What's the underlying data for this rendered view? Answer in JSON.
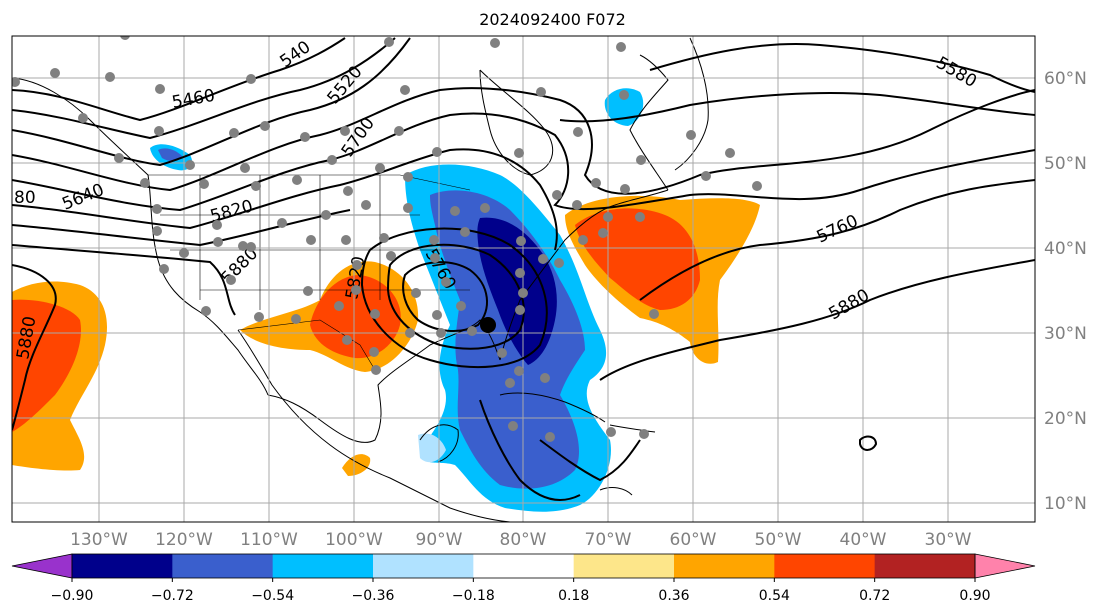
{
  "title": "2024092400 F072",
  "map": {
    "lon_labels": [
      "130°W",
      "120°W",
      "110°W",
      "100°W",
      "90°W",
      "80°W",
      "70°W",
      "60°W",
      "50°W",
      "40°W",
      "30°W"
    ],
    "lat_labels": [
      "60°N",
      "50°N",
      "40°N",
      "30°N",
      "20°N",
      "10°N"
    ],
    "contour_labels": [
      "5460",
      "540",
      "5520",
      "5700",
      "5580",
      "80",
      "5640",
      "5820",
      "5880",
      "5760",
      "5820",
      "5760",
      "5880",
      "5880"
    ]
  },
  "colorbar": {
    "tick_labels": [
      "−0.90",
      "−0.72",
      "−0.54",
      "−0.36",
      "−0.18",
      "0.18",
      "0.36",
      "0.54",
      "0.72",
      "0.90"
    ],
    "colors": [
      "#9932cc",
      "#00008b",
      "#3a5fcd",
      "#00bfff",
      "#b0e2ff",
      "#ffffff",
      "#fde68a",
      "#ffa500",
      "#ff4500",
      "#b22222",
      "#ff82ab"
    ]
  },
  "colors": {
    "grid": "#a9a9a9",
    "station": "#808080",
    "contour": "#000000"
  }
}
